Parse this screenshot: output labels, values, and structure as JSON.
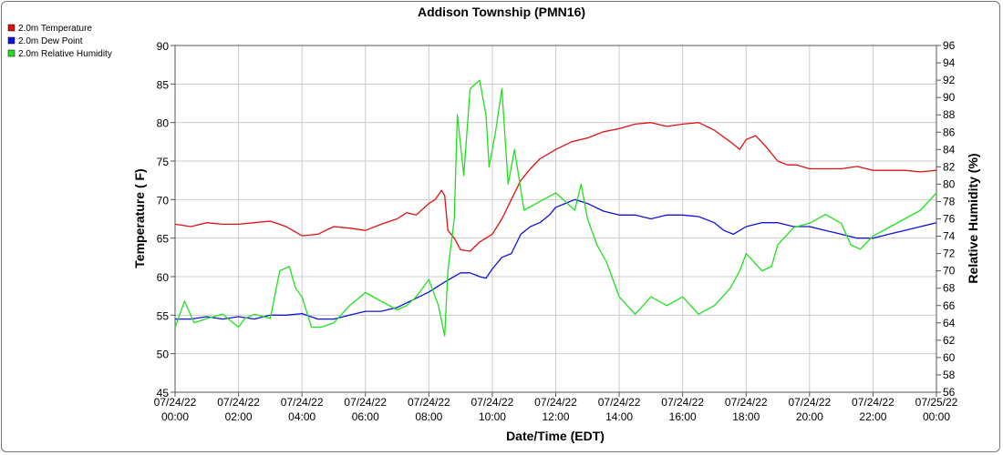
{
  "chart_data": {
    "type": "line",
    "title": "Addison Township (PMN16)",
    "xlabel": "Date/Time (EDT)",
    "ylabel": "Temperature ( F)",
    "y2label": "Relative Humidity (%)",
    "xlim": [
      0,
      24
    ],
    "ylim": [
      45,
      90
    ],
    "y2lim": [
      56,
      96
    ],
    "grid": true,
    "legend_position": "top-left",
    "x_ticks": [
      {
        "hours": 0,
        "date": "07/24/22",
        "time": "00:00"
      },
      {
        "hours": 2,
        "date": "07/24/22",
        "time": "02:00"
      },
      {
        "hours": 4,
        "date": "07/24/22",
        "time": "04:00"
      },
      {
        "hours": 6,
        "date": "07/24/22",
        "time": "06:00"
      },
      {
        "hours": 8,
        "date": "07/24/22",
        "time": "08:00"
      },
      {
        "hours": 10,
        "date": "07/24/22",
        "time": "10:00"
      },
      {
        "hours": 12,
        "date": "07/24/22",
        "time": "12:00"
      },
      {
        "hours": 14,
        "date": "07/24/22",
        "time": "14:00"
      },
      {
        "hours": 16,
        "date": "07/24/22",
        "time": "16:00"
      },
      {
        "hours": 18,
        "date": "07/24/22",
        "time": "18:00"
      },
      {
        "hours": 20,
        "date": "07/24/22",
        "time": "20:00"
      },
      {
        "hours": 22,
        "date": "07/24/22",
        "time": "22:00"
      },
      {
        "hours": 24,
        "date": "07/25/22",
        "time": "00:00"
      }
    ],
    "y_ticks": [
      45,
      50,
      55,
      60,
      65,
      70,
      75,
      80,
      85,
      90
    ],
    "y2_ticks": [
      56,
      58,
      60,
      62,
      64,
      66,
      68,
      70,
      72,
      74,
      76,
      78,
      80,
      82,
      84,
      86,
      88,
      90,
      92,
      94,
      96
    ],
    "series": [
      {
        "name": "2.0m Temperature",
        "color": "#e01010",
        "axis": "left",
        "x": [
          0,
          0.5,
          1,
          1.5,
          2,
          2.5,
          3,
          3.5,
          4,
          4.5,
          5,
          5.5,
          6,
          6.5,
          7,
          7.3,
          7.6,
          8,
          8.2,
          8.4,
          8.5,
          8.6,
          8.8,
          9,
          9.3,
          9.6,
          10,
          10.3,
          10.6,
          10.9,
          11.2,
          11.5,
          12,
          12.5,
          13,
          13.5,
          14,
          14.5,
          15,
          15.5,
          16,
          16.5,
          17,
          17.5,
          17.8,
          18,
          18.3,
          18.6,
          19,
          19.3,
          19.6,
          20,
          20.5,
          21,
          21.5,
          22,
          22.5,
          23,
          23.5,
          24
        ],
        "y": [
          66.8,
          66.5,
          67.0,
          66.8,
          66.8,
          67.0,
          67.2,
          66.5,
          65.3,
          65.5,
          66.5,
          66.3,
          66.0,
          66.8,
          67.5,
          68.3,
          68.0,
          69.5,
          70.0,
          71.2,
          70.5,
          66.0,
          65.0,
          63.5,
          63.3,
          64.5,
          65.5,
          67.5,
          70.0,
          72.5,
          74.0,
          75.3,
          76.5,
          77.5,
          78.0,
          78.8,
          79.2,
          79.8,
          80.0,
          79.5,
          79.8,
          80.0,
          79.0,
          77.5,
          76.5,
          77.8,
          78.3,
          77.0,
          75.0,
          74.5,
          74.5,
          74.0,
          74.0,
          74.0,
          74.3,
          73.8,
          73.8,
          73.8,
          73.6,
          73.8
        ]
      },
      {
        "name": "2.0m Dew Point",
        "color": "#1010e0",
        "axis": "left",
        "x": [
          0,
          0.5,
          1,
          1.5,
          2,
          2.5,
          3,
          3.5,
          4,
          4.5,
          5,
          5.5,
          6,
          6.5,
          7,
          7.5,
          8,
          8.5,
          9,
          9.3,
          9.6,
          9.8,
          10,
          10.3,
          10.6,
          10.9,
          11.2,
          11.5,
          11.8,
          12,
          12.3,
          12.6,
          13,
          13.5,
          14,
          14.5,
          15,
          15.5,
          16,
          16.5,
          17,
          17.3,
          17.6,
          18,
          18.5,
          19,
          19.5,
          20,
          20.5,
          21,
          21.5,
          22,
          22.5,
          23,
          23.5,
          24
        ],
        "y": [
          54.5,
          54.5,
          54.8,
          54.5,
          54.8,
          54.5,
          55.0,
          55.0,
          55.2,
          54.5,
          54.5,
          55.0,
          55.5,
          55.5,
          56.0,
          57.0,
          58.0,
          59.3,
          60.5,
          60.5,
          60.0,
          59.8,
          61.0,
          62.5,
          63.0,
          65.5,
          66.5,
          67.0,
          68.0,
          69.0,
          69.5,
          70.0,
          69.5,
          68.5,
          68.0,
          68.0,
          67.5,
          68.0,
          68.0,
          67.8,
          67.0,
          66.0,
          65.5,
          66.5,
          67.0,
          67.0,
          66.5,
          66.5,
          66.0,
          65.5,
          65.0,
          65.0,
          65.5,
          66.0,
          66.5,
          67.0
        ]
      },
      {
        "name": "2.0m Relative Humidity",
        "color": "#20e020",
        "axis": "right",
        "x": [
          0,
          0.3,
          0.6,
          1,
          1.5,
          2,
          2.2,
          2.5,
          3,
          3.3,
          3.6,
          3.8,
          4,
          4.3,
          4.6,
          5,
          5.5,
          6,
          6.5,
          7,
          7.3,
          7.6,
          7.8,
          8,
          8.3,
          8.5,
          8.6,
          8.8,
          8.9,
          9.1,
          9.3,
          9.6,
          9.8,
          9.9,
          10.1,
          10.3,
          10.5,
          10.7,
          11,
          11.5,
          12,
          12.3,
          12.6,
          12.8,
          13,
          13.3,
          13.6,
          14,
          14.5,
          15,
          15.5,
          16,
          16.5,
          17,
          17.5,
          17.8,
          18,
          18.5,
          18.8,
          19,
          19.5,
          20,
          20.5,
          21,
          21.3,
          21.6,
          22,
          22.5,
          23,
          23.5,
          24
        ],
        "y": [
          63.5,
          66.5,
          64.0,
          64.5,
          65.0,
          63.5,
          64.5,
          65.0,
          64.5,
          70.0,
          70.5,
          68.0,
          67.0,
          63.5,
          63.5,
          64.0,
          66.0,
          67.5,
          66.5,
          65.5,
          66.0,
          67.0,
          68.0,
          69.0,
          66.0,
          62.5,
          70.0,
          76.0,
          88.0,
          81.0,
          91.0,
          92.0,
          88.0,
          82.0,
          86.0,
          91.0,
          80.0,
          84.0,
          77.0,
          78.0,
          79.0,
          78.0,
          77.0,
          80.0,
          76.0,
          73.0,
          71.0,
          67.0,
          65.0,
          67.0,
          66.0,
          67.0,
          65.0,
          66.0,
          68.0,
          70.0,
          72.0,
          70.0,
          70.5,
          73.0,
          75.0,
          75.5,
          76.5,
          75.5,
          73.0,
          72.5,
          74.0,
          75.0,
          76.0,
          77.0,
          79.0
        ]
      }
    ]
  }
}
